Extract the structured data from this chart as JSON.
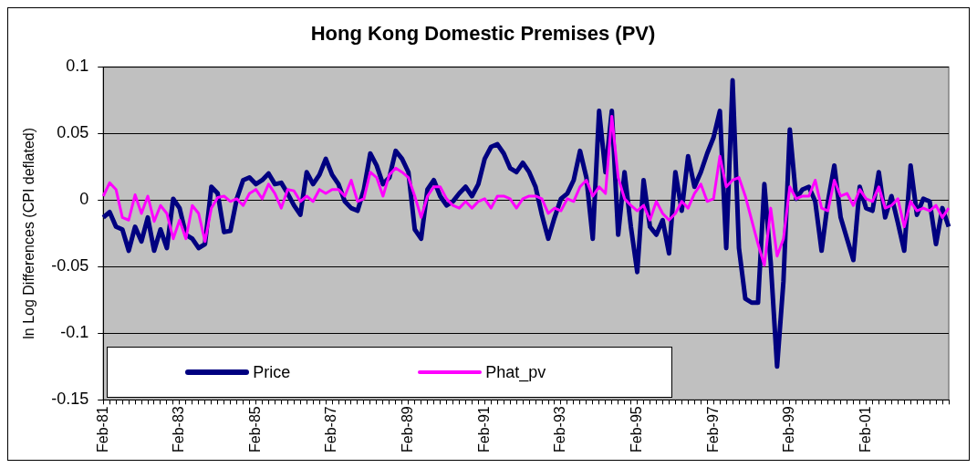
{
  "chart_data": {
    "type": "line",
    "title": "Hong Kong Domestic Premises (PV)",
    "ylabel": "ln Log Differences (CPI deflated)",
    "categories": [
      "Feb-81",
      null,
      null,
      null,
      null,
      null,
      null,
      null,
      null,
      null,
      null,
      null,
      "Feb-83",
      null,
      null,
      null,
      null,
      null,
      null,
      null,
      null,
      null,
      null,
      null,
      "Feb-85",
      null,
      null,
      null,
      null,
      null,
      null,
      null,
      null,
      null,
      null,
      null,
      "Feb-87",
      null,
      null,
      null,
      null,
      null,
      null,
      null,
      null,
      null,
      null,
      null,
      "Feb-89",
      null,
      null,
      null,
      null,
      null,
      null,
      null,
      null,
      null,
      null,
      null,
      "Feb-91",
      null,
      null,
      null,
      null,
      null,
      null,
      null,
      null,
      null,
      null,
      null,
      "Feb-93",
      null,
      null,
      null,
      null,
      null,
      null,
      null,
      null,
      null,
      null,
      null,
      "Feb-95",
      null,
      null,
      null,
      null,
      null,
      null,
      null,
      null,
      null,
      null,
      null,
      "Feb-97",
      null,
      null,
      null,
      null,
      null,
      null,
      null,
      null,
      null,
      null,
      null,
      "Feb-99",
      null,
      null,
      null,
      null,
      null,
      null,
      null,
      null,
      null,
      null,
      null,
      "Feb-01",
      null,
      null,
      null,
      null,
      null,
      null,
      null,
      null,
      null,
      null,
      null,
      null,
      null
    ],
    "series": [
      {
        "name": "Price",
        "color": "#000080",
        "values": [
          -0.013,
          -0.009,
          -0.02,
          -0.022,
          -0.038,
          -0.02,
          -0.031,
          -0.013,
          -0.038,
          -0.022,
          -0.036,
          0.001,
          -0.006,
          -0.026,
          -0.029,
          -0.036,
          -0.033,
          0.01,
          0.005,
          -0.024,
          -0.023,
          0.001,
          0.015,
          0.017,
          0.012,
          0.015,
          0.02,
          0.012,
          0.013,
          0.005,
          -0.004,
          -0.011,
          0.021,
          0.012,
          0.019,
          0.031,
          0.019,
          0.012,
          -0.001,
          -0.006,
          -0.008,
          0.008,
          0.035,
          0.026,
          0.012,
          0.017,
          0.037,
          0.031,
          0.021,
          -0.022,
          -0.029,
          0.008,
          0.015,
          0.003,
          -0.004,
          -0.001,
          0.005,
          0.01,
          0.003,
          0.012,
          0.031,
          0.04,
          0.042,
          0.035,
          0.024,
          0.021,
          0.028,
          0.021,
          0.01,
          -0.011,
          -0.029,
          -0.013,
          0.001,
          0.005,
          0.015,
          0.037,
          0.017,
          -0.029,
          0.067,
          0.021,
          0.067,
          -0.026,
          0.021,
          -0.02,
          -0.054,
          0.015,
          -0.02,
          -0.026,
          -0.015,
          -0.04,
          0.021,
          -0.008,
          0.033,
          0.01,
          0.021,
          0.035,
          0.047,
          0.067,
          -0.036,
          0.09,
          -0.036,
          -0.074,
          -0.077,
          -0.077,
          0.012,
          -0.047,
          -0.125,
          -0.061,
          0.053,
          0.001,
          0.008,
          0.01,
          -0.001,
          -0.038,
          -0.001,
          0.026,
          -0.013,
          -0.029,
          -0.045,
          0.01,
          -0.006,
          -0.008,
          0.021,
          -0.013,
          0.003,
          -0.017,
          -0.038,
          0.026,
          -0.011,
          0.001,
          -0.001,
          -0.033,
          -0.006,
          -0.02
        ]
      },
      {
        "name": "Phat_pv",
        "color": "#ff00ff",
        "values": [
          0.003,
          0.013,
          0.008,
          -0.013,
          -0.015,
          0.004,
          -0.01,
          0.003,
          -0.016,
          -0.004,
          -0.01,
          -0.029,
          -0.015,
          -0.029,
          -0.004,
          -0.01,
          -0.031,
          -0.006,
          0.002,
          0.003,
          -0.001,
          0.001,
          -0.004,
          0.005,
          0.008,
          0.001,
          0.012,
          0.005,
          -0.006,
          0.008,
          0.007,
          -0.001,
          0.003,
          -0.001,
          0.008,
          0.005,
          0.008,
          0.008,
          0.003,
          0.015,
          -0.001,
          0.001,
          0.021,
          0.017,
          0.003,
          0.019,
          0.024,
          0.021,
          0.017,
          0.003,
          -0.013,
          0.003,
          0.01,
          0.01,
          0.001,
          -0.004,
          -0.006,
          -0.001,
          -0.006,
          -0.001,
          0.001,
          -0.006,
          0.003,
          0.003,
          0.001,
          -0.006,
          0.001,
          0.003,
          0.003,
          0.001,
          -0.01,
          -0.006,
          -0.008,
          0.001,
          -0.001,
          0.01,
          0.015,
          0.003,
          0.01,
          0.005,
          0.063,
          0.017,
          0.001,
          -0.004,
          -0.008,
          -0.004,
          -0.015,
          -0.001,
          -0.01,
          -0.015,
          -0.01,
          -0.001,
          -0.006,
          0.005,
          0.012,
          -0.001,
          0.001,
          0.033,
          0.01,
          0.015,
          0.017,
          0.003,
          -0.015,
          -0.033,
          -0.049,
          -0.006,
          -0.042,
          -0.029,
          0.01,
          0.001,
          0.003,
          0.003,
          0.015,
          -0.006,
          -0.008,
          0.015,
          0.003,
          0.005,
          -0.004,
          0.008,
          0.001,
          -0.001,
          0.01,
          -0.006,
          -0.004,
          0.001,
          -0.02,
          -0.001,
          -0.008,
          -0.006,
          -0.008,
          -0.004,
          -0.013,
          -0.006
        ]
      }
    ],
    "ylim": [
      -0.15,
      0.1
    ],
    "yticks": [
      -0.15,
      -0.1,
      -0.05,
      0,
      0.05,
      0.1
    ],
    "grid": "y",
    "legend": "bottom left",
    "marker": "none",
    "line_style": "solid"
  }
}
